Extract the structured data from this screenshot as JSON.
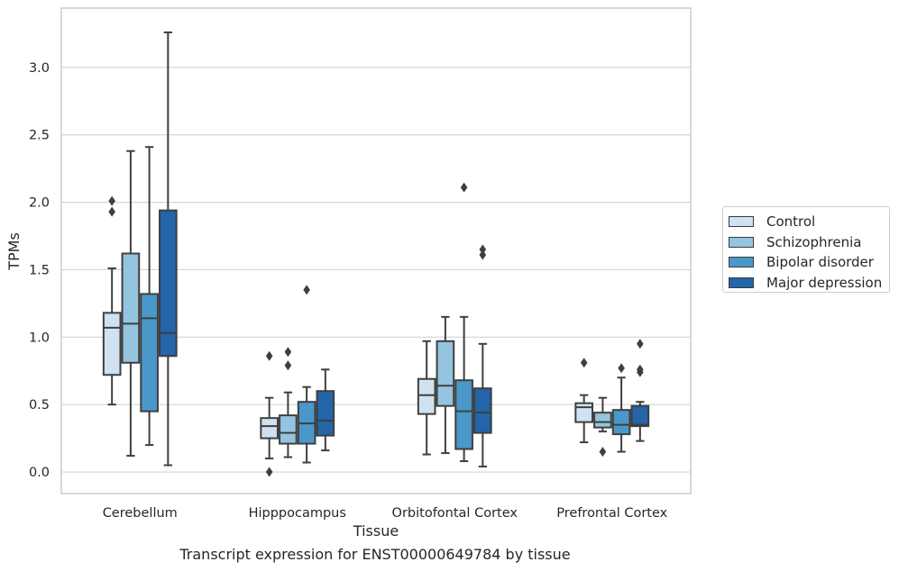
{
  "chart_data": {
    "type": "boxplot",
    "title": "",
    "xlabel": "Tissue",
    "ylabel": "TPMs",
    "ylim": [
      -0.16,
      3.44
    ],
    "yticks": [
      "0.0",
      "0.5",
      "1.0",
      "1.5",
      "2.0",
      "2.5",
      "3.0"
    ],
    "grid": "horizontal",
    "legend_placement": "right",
    "categories": [
      "Cerebellum",
      "Hipppocampus",
      "Orbitofontal Cortex",
      "Prefrontal Cortex"
    ],
    "series": [
      {
        "name": "Control",
        "color": "#d0e1f1",
        "boxes": [
          {
            "whislo": 0.5,
            "q1": 0.72,
            "med": 1.07,
            "q3": 1.18,
            "whishi": 1.51,
            "fliers": [
              1.93,
              2.01
            ]
          },
          {
            "whislo": 0.1,
            "q1": 0.25,
            "med": 0.34,
            "q3": 0.4,
            "whishi": 0.55,
            "fliers": [
              0.0,
              0.86
            ]
          },
          {
            "whislo": 0.13,
            "q1": 0.43,
            "med": 0.57,
            "q3": 0.69,
            "whishi": 0.97,
            "fliers": []
          },
          {
            "whislo": 0.22,
            "q1": 0.37,
            "med": 0.48,
            "q3": 0.51,
            "whishi": 0.57,
            "fliers": [
              0.81
            ]
          }
        ]
      },
      {
        "name": "Schizophrenia",
        "color": "#94c4df",
        "boxes": [
          {
            "whislo": 0.12,
            "q1": 0.81,
            "med": 1.1,
            "q3": 1.62,
            "whishi": 2.38,
            "fliers": []
          },
          {
            "whislo": 0.11,
            "q1": 0.21,
            "med": 0.29,
            "q3": 0.42,
            "whishi": 0.59,
            "fliers": [
              0.79,
              0.89
            ]
          },
          {
            "whislo": 0.14,
            "q1": 0.49,
            "med": 0.64,
            "q3": 0.97,
            "whishi": 1.15,
            "fliers": []
          },
          {
            "whislo": 0.3,
            "q1": 0.33,
            "med": 0.37,
            "q3": 0.44,
            "whishi": 0.55,
            "fliers": [
              0.15
            ]
          }
        ]
      },
      {
        "name": "Bipolar disorder",
        "color": "#4a98c9",
        "boxes": [
          {
            "whislo": 0.2,
            "q1": 0.45,
            "med": 1.14,
            "q3": 1.32,
            "whishi": 2.41,
            "fliers": []
          },
          {
            "whislo": 0.07,
            "q1": 0.21,
            "med": 0.36,
            "q3": 0.52,
            "whishi": 0.63,
            "fliers": [
              1.35
            ]
          },
          {
            "whislo": 0.08,
            "q1": 0.17,
            "med": 0.45,
            "q3": 0.68,
            "whishi": 1.15,
            "fliers": [
              2.11
            ]
          },
          {
            "whislo": 0.15,
            "q1": 0.28,
            "med": 0.35,
            "q3": 0.46,
            "whishi": 0.7,
            "fliers": [
              0.77
            ]
          }
        ]
      },
      {
        "name": "Major depression",
        "color": "#2464a8",
        "boxes": [
          {
            "whislo": 0.05,
            "q1": 0.86,
            "med": 1.03,
            "q3": 1.94,
            "whishi": 3.26,
            "fliers": []
          },
          {
            "whislo": 0.16,
            "q1": 0.27,
            "med": 0.38,
            "q3": 0.6,
            "whishi": 0.76,
            "fliers": []
          },
          {
            "whislo": 0.04,
            "q1": 0.29,
            "med": 0.44,
            "q3": 0.62,
            "whishi": 0.95,
            "fliers": [
              1.61,
              1.65
            ]
          },
          {
            "whislo": 0.23,
            "q1": 0.34,
            "med": 0.35,
            "q3": 0.49,
            "whishi": 0.52,
            "fliers": [
              0.74,
              0.76,
              0.95
            ]
          }
        ]
      }
    ],
    "caption": "Transcript expression for ENST00000649784 by tissue"
  }
}
